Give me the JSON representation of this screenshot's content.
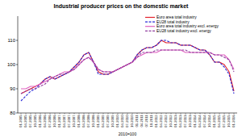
{
  "chart_data": {
    "type": "line",
    "title": "Industrial producer prices on the domestic market",
    "x_label": "2010=100",
    "categories": [
      "01-2005",
      "04-2005",
      "07-2005",
      "10-2005",
      "01-2006",
      "04-2006",
      "07-2006",
      "10-2006",
      "01-2007",
      "04-2007",
      "07-2007",
      "10-2007",
      "01-2008",
      "04-2008",
      "07-2008",
      "10-2008",
      "01-2009",
      "04-2009",
      "07-2009",
      "10-2009",
      "01-2010",
      "04-2010",
      "07-2010",
      "10-2010",
      "01-2011",
      "04-2011",
      "07-2011",
      "10-2011",
      "01-2012",
      "04-2012",
      "07-2012",
      "10-2012",
      "01-2013",
      "04-2013",
      "07-2013",
      "10-2013",
      "01-2014",
      "04-2014",
      "07-2014",
      "10-2014",
      "01-2015",
      "04-2015",
      "07-2015",
      "10-2015",
      "01-2016"
    ],
    "series": [
      {
        "name": "Euro area total industry",
        "color": "#e3202a",
        "line_style": "solid",
        "values": [
          88,
          89,
          90,
          91,
          92,
          94,
          95,
          94,
          95,
          96,
          97,
          99,
          101,
          104,
          105,
          101,
          97,
          96,
          96,
          97,
          98,
          99,
          100,
          101,
          104,
          106,
          107,
          107,
          108,
          110,
          109,
          109,
          109,
          108,
          108,
          108,
          107,
          106,
          106,
          104,
          101,
          101,
          100,
          97,
          89
        ]
      },
      {
        "name": "EU28 total industry",
        "color": "#2a2ad8",
        "line_style": "dashed",
        "values": [
          85,
          87,
          89,
          90,
          92,
          94,
          95,
          94,
          95,
          96,
          97,
          99,
          101,
          104,
          105,
          101,
          96,
          96,
          96,
          97,
          98,
          99,
          100,
          101,
          104,
          106,
          107,
          107,
          108,
          110,
          110,
          109,
          109,
          108,
          108,
          108,
          107,
          106,
          106,
          104,
          101,
          101,
          99,
          96,
          88
        ]
      },
      {
        "name": "Euro area total industry excl. energy",
        "color": "#e060c0",
        "line_style": "solid",
        "values": [
          90,
          90,
          91,
          91,
          92,
          93,
          94,
          95,
          96,
          97,
          97,
          98,
          100,
          102,
          103,
          101,
          98,
          97,
          97,
          97,
          98,
          99,
          100,
          101,
          103,
          104,
          105,
          105,
          105,
          106,
          106,
          106,
          106,
          106,
          105,
          105,
          105,
          105,
          105,
          105,
          104,
          104,
          104,
          102,
          98
        ]
      },
      {
        "name": "EU28 total industry excl. energy",
        "color": "#9040a0",
        "line_style": "dashed",
        "values": [
          88,
          89,
          90,
          90,
          91,
          92,
          94,
          95,
          96,
          96,
          97,
          98,
          100,
          102,
          103,
          101,
          98,
          97,
          97,
          97,
          98,
          99,
          100,
          101,
          103,
          105,
          105,
          105,
          106,
          106,
          106,
          106,
          106,
          106,
          106,
          105,
          105,
          105,
          105,
          105,
          104,
          104,
          103,
          102,
          97
        ]
      }
    ],
    "ylim": [
      80,
      120
    ],
    "yticks": [
      80,
      90,
      100,
      110
    ],
    "grid": false,
    "legend": "top-right"
  }
}
